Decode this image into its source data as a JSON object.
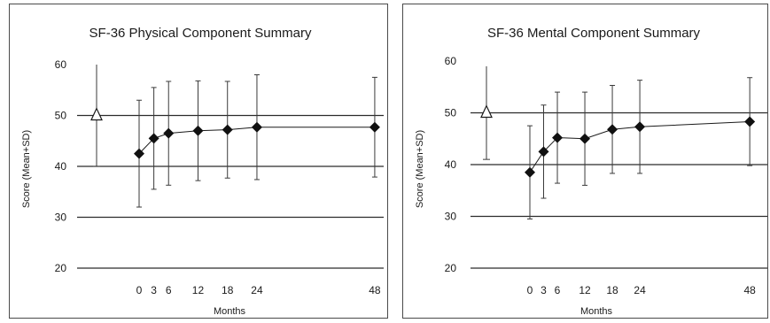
{
  "chart_data": [
    {
      "type": "line",
      "title": "SF-36 Physical Component Summary",
      "xlabel": "Months",
      "ylabel": "Score (Mean+SD)",
      "x": [
        0,
        3,
        6,
        12,
        18,
        24,
        48
      ],
      "x_ticks": [
        "0",
        "3",
        "6",
        "12",
        "18",
        "24",
        "48"
      ],
      "y_ticks": [
        "60",
        "50",
        "40",
        "30",
        "20"
      ],
      "ylim": [
        20,
        60
      ],
      "grid": "horizontal",
      "series": [
        {
          "values": [
            42.5,
            45.5,
            46.5,
            47.0,
            47.2,
            47.7,
            47.7
          ],
          "sd": [
            10.5,
            10.0,
            10.2,
            9.8,
            9.5,
            10.3,
            9.8
          ],
          "marker": "filled-diamond"
        }
      ],
      "reference": {
        "marker": "open-triangle",
        "value": 50,
        "sd": 10
      }
    },
    {
      "type": "line",
      "title": "SF-36 Mental Component Summary",
      "xlabel": "Months",
      "ylabel": "Score (Mean+SD)",
      "x": [
        0,
        3,
        6,
        12,
        18,
        24,
        48
      ],
      "x_ticks": [
        "0",
        "3",
        "6",
        "12",
        "18",
        "24",
        "48"
      ],
      "y_ticks": [
        "60",
        "50",
        "40",
        "30",
        "20"
      ],
      "ylim": [
        20,
        60
      ],
      "grid": "horizontal",
      "series": [
        {
          "values": [
            38.5,
            42.5,
            45.2,
            45.0,
            46.8,
            47.3,
            48.3
          ],
          "sd": [
            9.0,
            9.0,
            8.8,
            9.0,
            8.5,
            9.0,
            8.5
          ],
          "marker": "filled-diamond"
        }
      ],
      "reference": {
        "marker": "open-triangle",
        "value": 50,
        "sd": 9
      }
    }
  ],
  "colors": {
    "marker": "#111111",
    "line": "#1a1a1a",
    "grid": "#2b2b2b",
    "error_bar": "#3a3a3a"
  }
}
